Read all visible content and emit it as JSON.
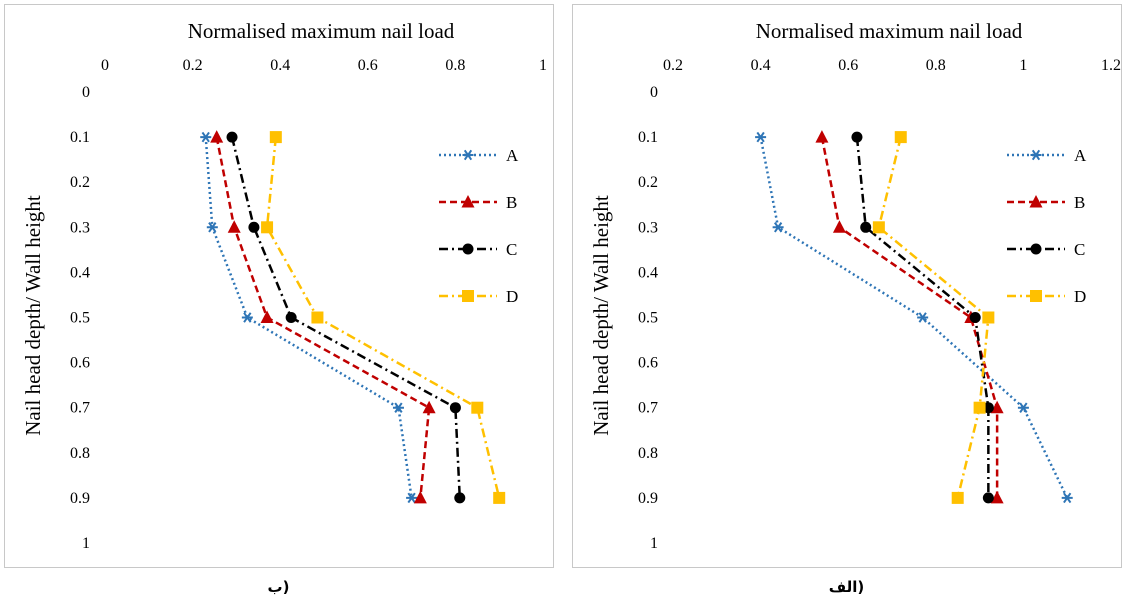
{
  "chart_data": [
    {
      "panel_caption": "ب)",
      "type": "line",
      "title": "",
      "xlabel": "Normalised maximum nail load",
      "ylabel": "Nail head depth/ Wall height",
      "xlim": [
        0,
        1
      ],
      "xticks": [
        "0",
        "0.2",
        "0.4",
        "0.6",
        "0.8",
        "1"
      ],
      "ylim": [
        0,
        1
      ],
      "yticks": [
        "0",
        "0.1",
        "0.2",
        "0.3",
        "0.4",
        "0.5",
        "0.6",
        "0.7",
        "0.8",
        "0.9",
        "1"
      ],
      "x_axis_position": "top",
      "y_axis_inverted": true,
      "grid": false,
      "legend_position": "right",
      "series": [
        {
          "name": "A",
          "color": "#2e75b6",
          "style": "dotted",
          "marker": "asterisk",
          "points": [
            {
              "x": 0.23,
              "y": 0.1
            },
            {
              "x": 0.245,
              "y": 0.3
            },
            {
              "x": 0.325,
              "y": 0.5
            },
            {
              "x": 0.67,
              "y": 0.7
            },
            {
              "x": 0.7,
              "y": 0.9
            }
          ]
        },
        {
          "name": "B",
          "color": "#c00000",
          "style": "dashed",
          "marker": "triangle",
          "points": [
            {
              "x": 0.255,
              "y": 0.1
            },
            {
              "x": 0.295,
              "y": 0.3
            },
            {
              "x": 0.37,
              "y": 0.5
            },
            {
              "x": 0.74,
              "y": 0.7
            },
            {
              "x": 0.72,
              "y": 0.9
            }
          ]
        },
        {
          "name": "C",
          "color": "#000000",
          "style": "dashdot",
          "marker": "circle",
          "points": [
            {
              "x": 0.29,
              "y": 0.1
            },
            {
              "x": 0.34,
              "y": 0.3
            },
            {
              "x": 0.425,
              "y": 0.5
            },
            {
              "x": 0.8,
              "y": 0.7
            },
            {
              "x": 0.81,
              "y": 0.9
            }
          ]
        },
        {
          "name": "D",
          "color": "#ffc000",
          "style": "dashdot",
          "marker": "square",
          "points": [
            {
              "x": 0.39,
              "y": 0.1
            },
            {
              "x": 0.37,
              "y": 0.3
            },
            {
              "x": 0.485,
              "y": 0.5
            },
            {
              "x": 0.85,
              "y": 0.7
            },
            {
              "x": 0.9,
              "y": 0.9
            }
          ]
        }
      ]
    },
    {
      "panel_caption": "الف)",
      "type": "line",
      "title": "",
      "xlabel": "Normalised maximum nail load",
      "ylabel": "Nail head depth/ Wall height",
      "xlim": [
        0.2,
        1.2
      ],
      "xticks": [
        "0.2",
        "0.4",
        "0.6",
        "0.8",
        "1",
        "1.2"
      ],
      "ylim": [
        0,
        1
      ],
      "yticks": [
        "0",
        "0.1",
        "0.2",
        "0.3",
        "0.4",
        "0.5",
        "0.6",
        "0.7",
        "0.8",
        "0.9",
        "1"
      ],
      "x_axis_position": "top",
      "y_axis_inverted": true,
      "grid": false,
      "legend_position": "right",
      "series": [
        {
          "name": "A",
          "color": "#2e75b6",
          "style": "dotted",
          "marker": "asterisk",
          "points": [
            {
              "x": 0.4,
              "y": 0.1
            },
            {
              "x": 0.44,
              "y": 0.3
            },
            {
              "x": 0.77,
              "y": 0.5
            },
            {
              "x": 1.0,
              "y": 0.7
            },
            {
              "x": 1.1,
              "y": 0.9
            }
          ]
        },
        {
          "name": "B",
          "color": "#c00000",
          "style": "dashed",
          "marker": "triangle",
          "points": [
            {
              "x": 0.54,
              "y": 0.1
            },
            {
              "x": 0.58,
              "y": 0.3
            },
            {
              "x": 0.88,
              "y": 0.5
            },
            {
              "x": 0.94,
              "y": 0.7
            },
            {
              "x": 0.94,
              "y": 0.9
            }
          ]
        },
        {
          "name": "C",
          "color": "#000000",
          "style": "dashdot",
          "marker": "circle",
          "points": [
            {
              "x": 0.62,
              "y": 0.1
            },
            {
              "x": 0.64,
              "y": 0.3
            },
            {
              "x": 0.89,
              "y": 0.5
            },
            {
              "x": 0.92,
              "y": 0.7
            },
            {
              "x": 0.92,
              "y": 0.9
            }
          ]
        },
        {
          "name": "D",
          "color": "#ffc000",
          "style": "dashdot",
          "marker": "square",
          "points": [
            {
              "x": 0.72,
              "y": 0.1
            },
            {
              "x": 0.67,
              "y": 0.3
            },
            {
              "x": 0.92,
              "y": 0.5
            },
            {
              "x": 0.9,
              "y": 0.7
            },
            {
              "x": 0.85,
              "y": 0.9
            }
          ]
        }
      ]
    }
  ]
}
